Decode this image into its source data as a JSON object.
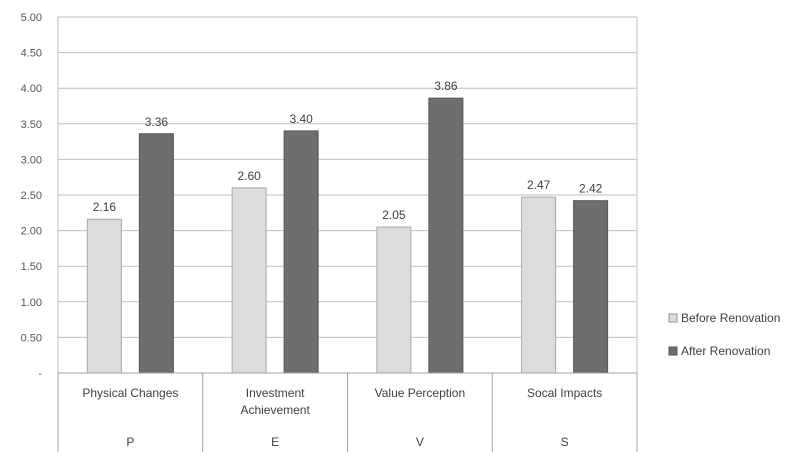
{
  "chart_data": {
    "type": "bar",
    "categories": [
      {
        "label": "Physical Changes",
        "group": "P"
      },
      {
        "label": "Investment Achievement",
        "group": "E"
      },
      {
        "label": "Value Perception",
        "group": "V"
      },
      {
        "label": "Socal Impacts",
        "group": "S"
      }
    ],
    "series": [
      {
        "name": "Before Renovation",
        "values": [
          2.16,
          2.6,
          2.05,
          2.47
        ],
        "labels": [
          "2.16",
          "2.60",
          "2.05",
          "2.47"
        ],
        "color": "#dcdcdc"
      },
      {
        "name": "After Renovation",
        "values": [
          3.36,
          3.4,
          3.86,
          2.42
        ],
        "labels": [
          "3.36",
          "3.40",
          "3.86",
          "2.42"
        ],
        "color": "#6e6e6e"
      }
    ],
    "y_ticks": [
      "-",
      "0.50",
      "1.00",
      "1.50",
      "2.00",
      "2.50",
      "3.00",
      "3.50",
      "4.00",
      "4.50",
      "5.00"
    ],
    "ylim": [
      0,
      5
    ],
    "grid": true,
    "legend": "right",
    "title": "",
    "xlabel": "",
    "ylabel": ""
  }
}
